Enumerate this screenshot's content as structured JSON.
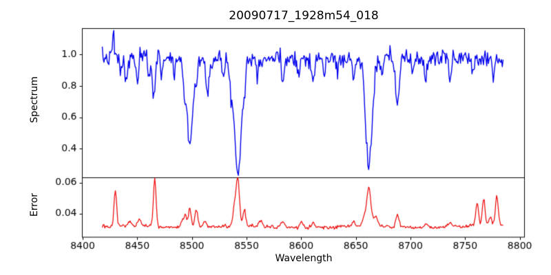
{
  "figure": {
    "background": "#ffffff",
    "spine_color": "#000000",
    "tick_color": "#000000",
    "text_color": "#000000"
  },
  "chart_data": {
    "type": "line",
    "title": "20090717_1928m54_018",
    "xlabel": "Wavelength",
    "x_start": 8418,
    "x_end": 8785,
    "x_step": 0.75,
    "xlim": [
      8399.7,
      8804.3
    ],
    "x_ticks": [
      8400,
      8450,
      8500,
      8550,
      8600,
      8650,
      8700,
      8750,
      8800
    ],
    "x_tick_labels": [
      "8400",
      "8450",
      "8500",
      "8550",
      "8600",
      "8650",
      "8700",
      "8750",
      "8800"
    ],
    "grid": false,
    "legend": "none",
    "panels": [
      {
        "name": "spectrum",
        "ylabel": "Spectrum",
        "line_color": "#0000ee",
        "ylim": [
          0.215,
          1.165
        ],
        "y_ticks": [
          0.4,
          0.6,
          0.8,
          1.0
        ],
        "y_tick_labels": [
          "0.4",
          "0.6",
          "0.8",
          "1.0"
        ],
        "continuum_level": 0.975,
        "noise_sigma": 0.027,
        "absorption_lines_center_depth_width": [
          [
            8428,
            -0.15,
            0.8
          ],
          [
            8435,
            0.09,
            1.0
          ],
          [
            8440,
            0.17,
            1.2
          ],
          [
            8450,
            0.15,
            1.2
          ],
          [
            8461,
            0.13,
            1.0
          ],
          [
            8465,
            0.24,
            1.2
          ],
          [
            8472,
            0.1,
            1.0
          ],
          [
            8484,
            0.1,
            1.0
          ],
          [
            8493,
            0.15,
            1.0
          ],
          [
            8498,
            0.53,
            2.8
          ],
          [
            8504,
            0.12,
            1.0
          ],
          [
            8514,
            0.2,
            1.5
          ],
          [
            8529,
            0.12,
            1.2
          ],
          [
            8536,
            0.15,
            1.0
          ],
          [
            8542,
            0.715,
            3.2
          ],
          [
            8548,
            0.12,
            1.0
          ],
          [
            8560,
            0.08,
            1.0
          ],
          [
            8583,
            0.15,
            1.2
          ],
          [
            8598,
            0.12,
            1.0
          ],
          [
            8611,
            0.16,
            1.3
          ],
          [
            8621,
            0.12,
            1.0
          ],
          [
            8633,
            0.09,
            1.0
          ],
          [
            8648,
            0.13,
            1.2
          ],
          [
            8662,
            0.675,
            3.0
          ],
          [
            8674,
            0.12,
            1.0
          ],
          [
            8688,
            0.29,
            1.6
          ],
          [
            8702,
            0.09,
            1.0
          ],
          [
            8714,
            0.15,
            1.2
          ],
          [
            8736,
            0.14,
            1.2
          ],
          [
            8757,
            0.1,
            1.0
          ],
          [
            8776,
            0.1,
            1.0
          ]
        ]
      },
      {
        "name": "error",
        "ylabel": "Error",
        "line_color": "#ee0000",
        "ylim": [
          0.0249,
          0.0631
        ],
        "y_ticks": [
          0.04,
          0.06
        ],
        "y_tick_labels": [
          "0.04",
          "0.06"
        ],
        "baseline_level": 0.0315,
        "noise_sigma": 0.0006,
        "peaks_center_height_width": [
          [
            8430,
            0.023,
            1.2
          ],
          [
            8443,
            0.003,
            1.5
          ],
          [
            8452,
            0.004,
            1.5
          ],
          [
            8466,
            0.0305,
            1.2
          ],
          [
            8491,
            0.005,
            1.2
          ],
          [
            8494,
            0.008,
            1.2
          ],
          [
            8498,
            0.013,
            1.3
          ],
          [
            8504,
            0.012,
            1.3
          ],
          [
            8512,
            0.004,
            1.5
          ],
          [
            8539,
            0.012,
            1.5
          ],
          [
            8542,
            0.0305,
            1.5
          ],
          [
            8548,
            0.01,
            1.3
          ],
          [
            8563,
            0.0035,
            1.5
          ],
          [
            8583,
            0.003,
            1.5
          ],
          [
            8600,
            0.0035,
            1.5
          ],
          [
            8611,
            0.003,
            1.5
          ],
          [
            8648,
            0.003,
            1.5
          ],
          [
            8658,
            0.006,
            2.0
          ],
          [
            8662,
            0.0235,
            1.8
          ],
          [
            8668,
            0.006,
            2.0
          ],
          [
            8688,
            0.008,
            1.5
          ],
          [
            8714,
            0.003,
            1.5
          ],
          [
            8736,
            0.003,
            1.5
          ],
          [
            8761,
            0.015,
            1.3
          ],
          [
            8767,
            0.017,
            1.3
          ],
          [
            8773,
            0.006,
            1.3
          ],
          [
            8779,
            0.019,
            1.3
          ]
        ]
      }
    ]
  }
}
